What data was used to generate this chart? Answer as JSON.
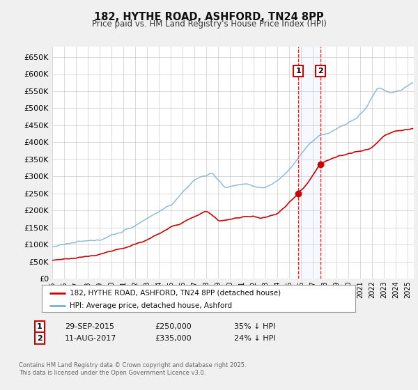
{
  "title": "182, HYTHE ROAD, ASHFORD, TN24 8PP",
  "subtitle": "Price paid vs. HM Land Registry's House Price Index (HPI)",
  "ylabel_ticks": [
    "£0",
    "£50K",
    "£100K",
    "£150K",
    "£200K",
    "£250K",
    "£300K",
    "£350K",
    "£400K",
    "£450K",
    "£500K",
    "£550K",
    "£600K",
    "£650K"
  ],
  "ytick_values": [
    0,
    50000,
    100000,
    150000,
    200000,
    250000,
    300000,
    350000,
    400000,
    450000,
    500000,
    550000,
    600000,
    650000
  ],
  "ylim": [
    0,
    680000
  ],
  "xlim_start": 1995.0,
  "xlim_end": 2025.5,
  "hpi_color": "#7aaed4",
  "price_color": "#cc0000",
  "sale1_date": 2015.75,
  "sale1_price": 250000,
  "sale2_date": 2017.61,
  "sale2_price": 335000,
  "legend1": "182, HYTHE ROAD, ASHFORD, TN24 8PP (detached house)",
  "legend2": "HPI: Average price, detached house, Ashford",
  "footer": "Contains HM Land Registry data © Crown copyright and database right 2025.\nThis data is licensed under the Open Government Licence v3.0.",
  "background_color": "#f0f0f0",
  "plot_bg_color": "#ffffff"
}
